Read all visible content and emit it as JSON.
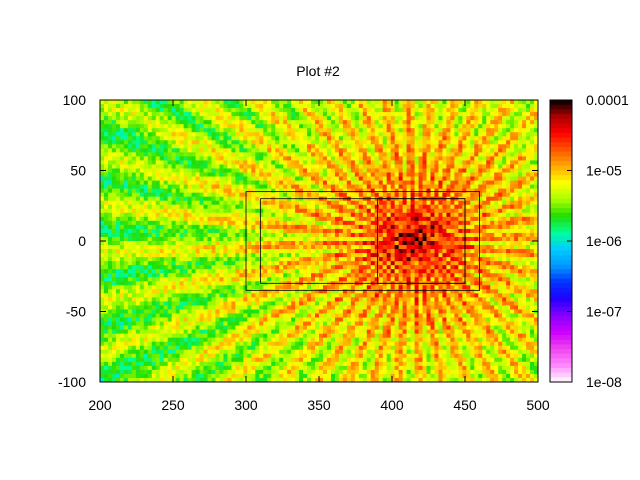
{
  "chart_data": {
    "type": "heatmap",
    "title": "Plot #2",
    "xlabel": "",
    "ylabel": "",
    "xlim": [
      200,
      500
    ],
    "ylim": [
      -100,
      100
    ],
    "x_ticks": [
      "200",
      "250",
      "300",
      "350",
      "400",
      "450",
      "500"
    ],
    "y_ticks": [
      "100",
      "50",
      "0",
      "-50",
      "-100"
    ],
    "colorbar": {
      "scale": "log",
      "range": [
        1e-08,
        0.0001
      ],
      "tick_labels": [
        "0.0001",
        "1e-05",
        "1e-06",
        "1e-07",
        "1e-08"
      ],
      "colormap": [
        "#ffffff",
        "#ff88ff",
        "#ee44ee",
        "#cc00ff",
        "#8800ff",
        "#2200ff",
        "#0033ff",
        "#0099ff",
        "#00ccff",
        "#00ff99",
        "#22dd00",
        "#aaff00",
        "#ffff00",
        "#ffaa00",
        "#ff5500",
        "#ff0000",
        "#aa0000",
        "#000000"
      ]
    },
    "hotspot": {
      "x": 415,
      "y": 0,
      "peak": 0.0001
    },
    "outline_boxes": [
      {
        "x": [
          300,
          460
        ],
        "y": [
          -35,
          35
        ]
      },
      {
        "x": [
          310,
          450
        ],
        "y": [
          -30,
          30
        ]
      },
      {
        "x": [
          390,
          450
        ],
        "y": [
          -30,
          30
        ]
      }
    ],
    "grid": false
  }
}
